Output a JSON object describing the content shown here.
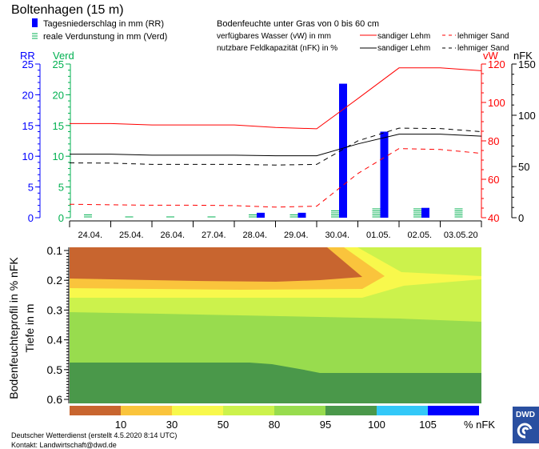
{
  "header": {
    "title": "Boltenhagen (15 m)",
    "legend_rr": "Tagesniederschlag in mm (RR)",
    "legend_verd": "reale Verdunstung in mm (Verd)",
    "soil_title": "Bodenfeuchte unter Gras von 0 bis 60 cm",
    "vw_label": "verfügbares Wasser (vW) in mm",
    "nfk_label": "nutzbare Feldkapazität (nFK) in %",
    "sandy_loam": "sandiger Lehm",
    "loamy_sand": "lehmiger Sand"
  },
  "colors": {
    "rr": "#0000ff",
    "verd": "#00b050",
    "vw": "#ff0000",
    "nfk": "#000000"
  },
  "chart_data": [
    {
      "type": "bar+line",
      "axes": {
        "rr": {
          "label": "RR",
          "range": [
            0,
            25
          ],
          "ticks": [
            "0",
            "5",
            "10",
            "15",
            "20",
            "25"
          ]
        },
        "verd": {
          "label": "Verd",
          "range": [
            0,
            25
          ],
          "ticks": [
            "0",
            "5",
            "10",
            "15",
            "20",
            "25"
          ]
        },
        "vw": {
          "label": "vW",
          "range": [
            40,
            120
          ],
          "ticks": [
            "40",
            "60",
            "80",
            "100",
            "120"
          ]
        },
        "nfk": {
          "label": "nFK",
          "range": [
            0,
            150
          ],
          "ticks": [
            "0",
            "50",
            "100",
            "150"
          ]
        }
      },
      "categories": [
        "24.04.",
        "25.04.",
        "26.04.",
        "27.04.",
        "28.04.",
        "29.04.",
        "30.04.",
        "01.05.",
        "02.05.",
        "03.05.20"
      ],
      "rr": [
        0,
        0,
        0,
        0,
        0.8,
        0.8,
        21.8,
        14.0,
        1.6,
        0
      ],
      "verd": [
        0.6,
        0.4,
        0.4,
        0.4,
        0.8,
        0.6,
        1.3,
        1.6,
        1.6,
        1.6
      ],
      "line_series_at_day_boundaries": [
        {
          "name": "vW sandiger Lehm",
          "axis": "vw",
          "style": "solid",
          "color": "#ff0000",
          "values": [
            89,
            89,
            88.3,
            88.3,
            88.3,
            87,
            86.3,
            102,
            118,
            118,
            116.5
          ]
        },
        {
          "name": "vW lehmiger Sand",
          "axis": "vw",
          "style": "dashed",
          "color": "#ff0000",
          "values": [
            47,
            46.7,
            46.5,
            46.5,
            46.3,
            45.5,
            46,
            63,
            76,
            75.5,
            73.5
          ]
        },
        {
          "name": "nFK sandiger Lehm",
          "axis": "nfk",
          "style": "solid",
          "color": "#000000",
          "values": [
            62,
            62,
            61,
            61,
            61,
            60.5,
            60.5,
            72,
            81.6,
            81.6,
            79.6
          ]
        },
        {
          "name": "nFK lehmiger Sand",
          "axis": "nfk",
          "style": "dashed",
          "color": "#000000",
          "values": [
            53.5,
            53.3,
            52,
            52,
            52,
            51.4,
            52,
            75,
            87.4,
            87,
            84
          ]
        }
      ]
    },
    {
      "type": "heatmap",
      "ylabel": "Bodenfeuchteprofil in % nFK",
      "ylabel2": "Tiefe in m",
      "depth_ticks": [
        "0.1",
        "0.2",
        "0.3",
        "0.4",
        "0.5",
        "0.6"
      ],
      "legend": {
        "labels": [
          "10",
          "30",
          "50",
          "80",
          "95",
          "100",
          "105"
        ],
        "unit": "% nFK",
        "colors": [
          "#c8652f",
          "#fac43c",
          "#f8f84c",
          "#ccf24c",
          "#98dc4e",
          "#4a984a",
          "#33c8f8",
          "#0000ff"
        ]
      }
    }
  ],
  "footer": {
    "credit": "Deutscher Wetterdienst (erstellt 4.5.2020 8:14 UTC)",
    "contact": "Kontakt: Landwirtschaft@dwd.de",
    "logo_text": "DWD"
  }
}
